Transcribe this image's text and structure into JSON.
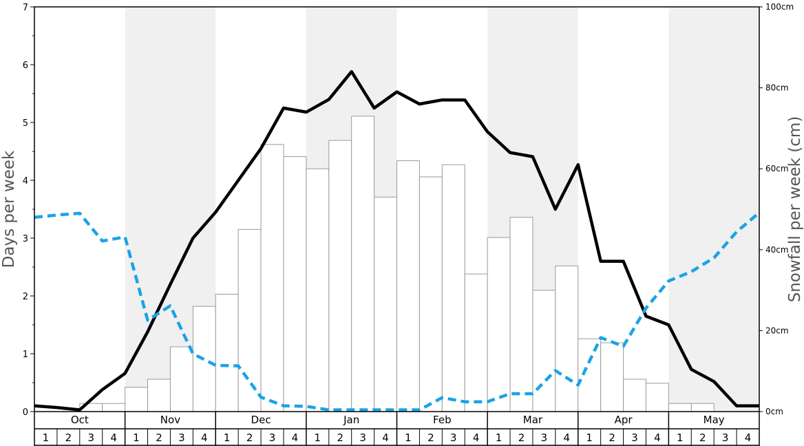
{
  "chart_data": {
    "type": "bar",
    "title": "",
    "ylabel_left": "Days per week",
    "ylabel_right": "Snowfall per week (cm)",
    "ylim_left": [
      0,
      7
    ],
    "ylim_right": [
      0,
      100
    ],
    "left_ticks": [
      "0",
      "1",
      "2",
      "3",
      "4",
      "5",
      "6",
      "7"
    ],
    "right_ticks": [
      "0cm",
      "20cm",
      "40cm",
      "60cm",
      "80cm",
      "100cm"
    ],
    "months": [
      "Oct",
      "Nov",
      "Dec",
      "Jan",
      "Feb",
      "Mar",
      "Apr",
      "May"
    ],
    "weeks": [
      "1",
      "2",
      "3",
      "4"
    ],
    "shaded_months": [
      "Nov",
      "Jan",
      "Mar",
      "May"
    ],
    "colors": {
      "shade": "#f0f0f0",
      "bar_fill": "#ffffff",
      "bar_stroke": "#999999",
      "solid_line": "#000000",
      "dashed_line": "#1aa3e6"
    },
    "series": [
      {
        "type": "bar",
        "axis": "right",
        "values": [
          0,
          0,
          2,
          2,
          6,
          8,
          16,
          26,
          29,
          45,
          66,
          63,
          60,
          67,
          73,
          53,
          62,
          58,
          61,
          34,
          43,
          48,
          30,
          36,
          18,
          17,
          8,
          7,
          2,
          2,
          0,
          0
        ]
      },
      {
        "type": "line",
        "style": "solid",
        "axis": "left",
        "values": [
          0.1,
          0.07,
          0.03,
          0.38,
          0.66,
          1.38,
          2.2,
          3.0,
          3.45,
          4.0,
          4.55,
          5.25,
          5.18,
          5.4,
          5.88,
          5.25,
          5.53,
          5.32,
          5.39,
          5.39,
          4.84,
          4.48,
          4.41,
          3.5,
          4.27,
          2.6,
          2.6,
          1.65,
          1.5,
          0.73,
          0.52,
          0.1,
          0.1
        ]
      },
      {
        "type": "line",
        "style": "dashed",
        "axis": "left",
        "values": [
          3.36,
          3.4,
          3.43,
          2.95,
          3.02,
          1.58,
          1.83,
          1.0,
          0.8,
          0.79,
          0.25,
          0.1,
          0.09,
          0.03,
          0.03,
          0.03,
          0.03,
          0.03,
          0.24,
          0.17,
          0.17,
          0.31,
          0.31,
          0.71,
          0.46,
          1.28,
          1.13,
          1.79,
          2.26,
          2.42,
          2.66,
          3.11,
          3.44
        ]
      }
    ]
  }
}
